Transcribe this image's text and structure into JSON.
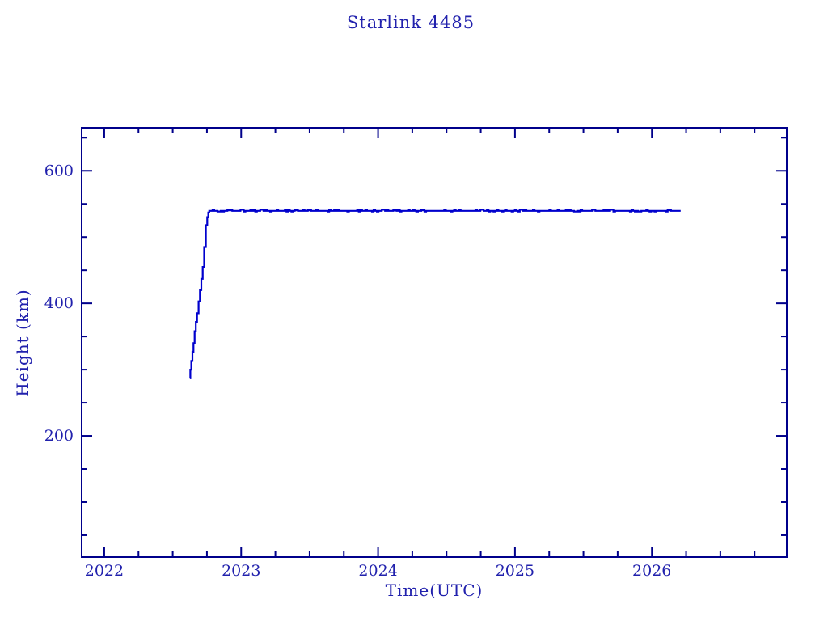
{
  "page": {
    "background": "#ffffff"
  },
  "chart_data": {
    "type": "line",
    "title": "Starlink 4485",
    "xlabel": "Time(UTC)",
    "ylabel": "Height (km)",
    "x_axis": {
      "min": 2021.835,
      "max": 2026.985,
      "major_ticks": [
        2022,
        2023,
        2024,
        2025,
        2026
      ],
      "minor_step": 0.25
    },
    "y_axis": {
      "min": 17,
      "max": 665,
      "major_ticks": [
        200,
        400,
        600
      ],
      "minor_step": 50
    },
    "grid": false,
    "legend": "none",
    "colors": {
      "line": "#0000cd",
      "axis": "#00008b",
      "text": "#2121ad"
    },
    "series": [
      {
        "name": "orbit-height-km",
        "rise_points": [
          [
            2022.625,
            287
          ],
          [
            2022.629,
            300
          ],
          [
            2022.636,
            313
          ],
          [
            2022.644,
            327
          ],
          [
            2022.652,
            340
          ],
          [
            2022.66,
            358
          ],
          [
            2022.669,
            372
          ],
          [
            2022.678,
            385
          ],
          [
            2022.689,
            403
          ],
          [
            2022.699,
            420
          ],
          [
            2022.709,
            437
          ],
          [
            2022.719,
            455
          ],
          [
            2022.73,
            485
          ],
          [
            2022.742,
            518
          ],
          [
            2022.752,
            530
          ],
          [
            2022.76,
            537
          ],
          [
            2022.767,
            539.5
          ]
        ],
        "plateau": {
          "x_start": 2022.767,
          "x_end": 2026.21,
          "y": 539.5,
          "jitter_km": 1.8,
          "sample_step": 0.012
        }
      }
    ]
  }
}
